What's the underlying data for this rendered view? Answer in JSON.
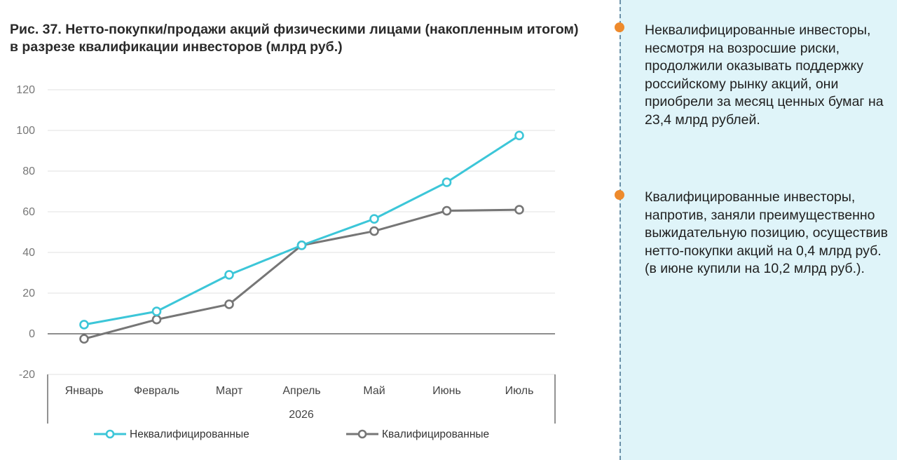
{
  "title": "Рис. 37. Нетто-покупки/продажи акций физическими лицами (накопленным итогом) в разрезе квалификации инвесторов (млрд руб.)",
  "notes": [
    "Неквалифицированные инвесторы, несмотря на возросшие риски, продолжили оказывать поддержку российскому рынку акций, они приобрели за месяц ценных бумаг на 23,4 млрд рублей.",
    "Квалифицированные инвесторы, напротив, заняли преимущественно выжидательную позицию, осуществив нетто-покупки акций на 0,4 млрд руб. (в июне купили на 10,2 млрд руб.)."
  ],
  "colors": {
    "accent": "#ee8a2c",
    "panel": "#dff4f9"
  },
  "chart_data": {
    "type": "line",
    "title": "Рис. 37. Нетто-покупки/продажи акций физическими лицами (накопленным итогом) в разрезе квалификации инвесторов (млрд руб.)",
    "categories": [
      "Январь",
      "Февраль",
      "Март",
      "Апрель",
      "Май",
      "Июнь",
      "Июль"
    ],
    "group_label": "2026",
    "ylim": [
      -20,
      120
    ],
    "yticks": [
      -20,
      0,
      20,
      40,
      60,
      80,
      100,
      120
    ],
    "grid": true,
    "legend_position": "bottom",
    "series": [
      {
        "name": "Неквалифицированные",
        "color": "#3cc6d8",
        "values": [
          4.5,
          11,
          29,
          43.5,
          56.5,
          74.5,
          97.5
        ]
      },
      {
        "name": "Квалифицированные",
        "color": "#767676",
        "values": [
          -2.5,
          7,
          14.5,
          43.5,
          50.5,
          60.5,
          61
        ]
      }
    ]
  }
}
